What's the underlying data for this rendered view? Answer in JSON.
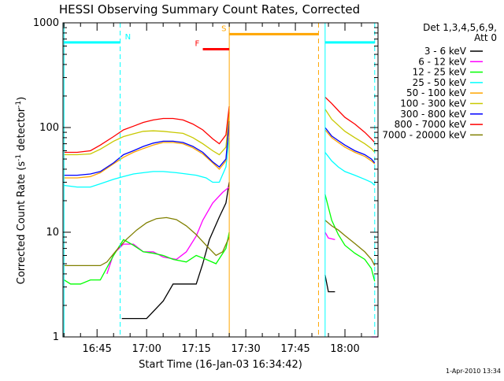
{
  "chart_data": {
    "type": "line",
    "title": "HESSI Observing Summary Count Rates, Corrected",
    "xlabel": "Start Time (16-Jan-03 16:34:42)",
    "ylabel_parts": [
      "Corrected Count Rate (s",
      "-1",
      " detector",
      "-1",
      ")"
    ],
    "y_scale": "log",
    "ylim": [
      1,
      1000
    ],
    "y_ticks": [
      1,
      10,
      100,
      1000
    ],
    "y_tick_labels": [
      "1",
      "10",
      "100",
      "1000"
    ],
    "xlim": [
      "16:34:42",
      "18:10:00"
    ],
    "x_ticks": [
      "16:45",
      "17:00",
      "17:15",
      "17:30",
      "17:45",
      "18:00"
    ],
    "grid": false,
    "legend_position": "right",
    "legend_header": [
      "Det 1,3,4,5,6,9,",
      "Att 0"
    ],
    "series": [
      {
        "name": "3 - 6 keV",
        "color": "#000000",
        "segments": [
          [
            [
              "16:34:42",
              null
            ],
            [
              "16:52",
              null
            ],
            [
              "16:52:30",
              1.5
            ],
            [
              "17:00",
              1.5
            ],
            [
              "17:05",
              2.2
            ],
            [
              "17:08",
              3.2
            ],
            [
              "17:12",
              3.2
            ],
            [
              "17:15",
              3.2
            ],
            [
              "17:17",
              5.0
            ],
            [
              "17:19",
              8.5
            ],
            [
              "17:22",
              14
            ],
            [
              "17:24",
              19
            ],
            [
              "17:25",
              30
            ]
          ],
          [
            [
              "17:54",
              3.9
            ],
            [
              "17:55",
              2.7
            ],
            [
              "17:57",
              2.7
            ]
          ]
        ]
      },
      {
        "name": "6 - 12 keV",
        "color": "#ff00ff",
        "segments": [
          [
            [
              "16:34:42",
              null
            ],
            [
              "16:46",
              null
            ],
            [
              "16:48",
              4.0
            ],
            [
              "16:50",
              6.2
            ],
            [
              "16:53",
              7.7
            ],
            [
              "16:56",
              7.7
            ],
            [
              "16:59",
              6.5
            ],
            [
              "17:02",
              6.5
            ],
            [
              "17:05",
              5.8
            ],
            [
              "17:09",
              5.5
            ],
            [
              "17:12",
              6.5
            ],
            [
              "17:15",
              9.2
            ],
            [
              "17:17",
              13
            ],
            [
              "17:20",
              19
            ],
            [
              "17:23",
              24
            ],
            [
              "17:25",
              27
            ]
          ],
          [
            [
              "17:54",
              10
            ],
            [
              "17:55",
              8.8
            ],
            [
              "17:57",
              8.5
            ]
          ],
          [
            [
              "18:08",
              1.0
            ],
            [
              "18:10",
              1.0
            ]
          ]
        ]
      },
      {
        "name": "12 - 25 keV",
        "color": "#00ff00",
        "segments": [
          [
            [
              "16:35",
              3.5
            ],
            [
              "16:37",
              3.2
            ],
            [
              "16:40",
              3.2
            ],
            [
              "16:43",
              3.5
            ],
            [
              "16:46",
              3.5
            ],
            [
              "16:50",
              6.0
            ],
            [
              "16:53",
              8.5
            ],
            [
              "16:56",
              7.5
            ],
            [
              "16:59",
              6.5
            ],
            [
              "17:02",
              6.3
            ],
            [
              "17:05",
              6.0
            ],
            [
              "17:08",
              5.5
            ],
            [
              "17:12",
              5.2
            ],
            [
              "17:15",
              6.0
            ],
            [
              "17:18",
              5.5
            ],
            [
              "17:21",
              5.0
            ],
            [
              "17:24",
              7.0
            ],
            [
              "17:25",
              10
            ]
          ],
          [
            [
              "17:54",
              23
            ],
            [
              "17:56",
              13
            ],
            [
              "17:58",
              9.5
            ],
            [
              "18:00",
              7.5
            ],
            [
              "18:03",
              6.3
            ],
            [
              "18:06",
              5.5
            ],
            [
              "18:08",
              4.5
            ],
            [
              "18:09",
              3.4
            ]
          ]
        ]
      },
      {
        "name": "25 - 50 keV",
        "color": "#00ffff",
        "segments": [
          [
            [
              "16:35",
              28
            ],
            [
              "16:39",
              27
            ],
            [
              "16:43",
              27
            ],
            [
              "16:46",
              29
            ],
            [
              "16:50",
              32
            ],
            [
              "16:53",
              34
            ],
            [
              "16:56",
              36
            ],
            [
              "16:59",
              37
            ],
            [
              "17:02",
              38
            ],
            [
              "17:05",
              38
            ],
            [
              "17:09",
              37
            ],
            [
              "17:12",
              36
            ],
            [
              "17:15",
              35
            ],
            [
              "17:18",
              33
            ],
            [
              "17:20",
              30
            ],
            [
              "17:22",
              30
            ],
            [
              "17:24",
              42
            ],
            [
              "17:25",
              80
            ]
          ],
          [
            [
              "17:54",
              58
            ],
            [
              "17:56",
              48
            ],
            [
              "17:58",
              42
            ],
            [
              "18:00",
              38
            ],
            [
              "18:03",
              35
            ],
            [
              "18:06",
              32
            ],
            [
              "18:08",
              30
            ],
            [
              "18:09",
              28
            ]
          ]
        ]
      },
      {
        "name": "50 - 100 keV",
        "color": "#ffa500",
        "segments": [
          [
            [
              "16:35",
              33
            ],
            [
              "16:39",
              33
            ],
            [
              "16:43",
              34
            ],
            [
              "16:46",
              37
            ],
            [
              "16:50",
              45
            ],
            [
              "16:53",
              52
            ],
            [
              "16:56",
              58
            ],
            [
              "16:59",
              63
            ],
            [
              "17:02",
              68
            ],
            [
              "17:05",
              72
            ],
            [
              "17:08",
              72
            ],
            [
              "17:11",
              70
            ],
            [
              "17:14",
              64
            ],
            [
              "17:17",
              56
            ],
            [
              "17:20",
              46
            ],
            [
              "17:22",
              40
            ],
            [
              "17:24",
              48
            ],
            [
              "17:25",
              110
            ]
          ],
          [
            [
              "17:54",
              95
            ],
            [
              "17:56",
              80
            ],
            [
              "17:58",
              72
            ],
            [
              "18:00",
              65
            ],
            [
              "18:03",
              58
            ],
            [
              "18:06",
              53
            ],
            [
              "18:08",
              48
            ],
            [
              "18:09",
              45
            ]
          ]
        ]
      },
      {
        "name": "100 - 300 keV",
        "color": "#c8c800",
        "segments": [
          [
            [
              "16:35",
              55
            ],
            [
              "16:39",
              55
            ],
            [
              "16:43",
              56
            ],
            [
              "16:46",
              62
            ],
            [
              "16:50",
              74
            ],
            [
              "16:53",
              82
            ],
            [
              "16:56",
              87
            ],
            [
              "16:59",
              92
            ],
            [
              "17:02",
              93
            ],
            [
              "17:05",
              92
            ],
            [
              "17:08",
              90
            ],
            [
              "17:11",
              88
            ],
            [
              "17:14",
              80
            ],
            [
              "17:17",
              70
            ],
            [
              "17:20",
              60
            ],
            [
              "17:22",
              55
            ],
            [
              "17:24",
              65
            ],
            [
              "17:25",
              140
            ]
          ],
          [
            [
              "17:54",
              150
            ],
            [
              "17:56",
              120
            ],
            [
              "17:58",
              105
            ],
            [
              "18:00",
              92
            ],
            [
              "18:03",
              80
            ],
            [
              "18:06",
              70
            ],
            [
              "18:08",
              63
            ],
            [
              "18:09",
              58
            ]
          ]
        ]
      },
      {
        "name": "300 - 800 keV",
        "color": "#0000ff",
        "segments": [
          [
            [
              "16:35",
              35
            ],
            [
              "16:39",
              35
            ],
            [
              "16:43",
              36
            ],
            [
              "16:46",
              38
            ],
            [
              "16:50",
              46
            ],
            [
              "16:53",
              55
            ],
            [
              "16:56",
              60
            ],
            [
              "16:59",
              66
            ],
            [
              "17:02",
              71
            ],
            [
              "17:05",
              74
            ],
            [
              "17:08",
              74
            ],
            [
              "17:11",
              72
            ],
            [
              "17:14",
              66
            ],
            [
              "17:17",
              58
            ],
            [
              "17:20",
              47
            ],
            [
              "17:22",
              42
            ],
            [
              "17:24",
              50
            ],
            [
              "17:25",
              115
            ]
          ],
          [
            [
              "17:54",
              100
            ],
            [
              "17:56",
              83
            ],
            [
              "17:58",
              75
            ],
            [
              "18:00",
              68
            ],
            [
              "18:03",
              60
            ],
            [
              "18:06",
              55
            ],
            [
              "18:08",
              50
            ],
            [
              "18:09",
              46
            ]
          ]
        ]
      },
      {
        "name": "800 - 7000 keV",
        "color": "#ff0000",
        "segments": [
          [
            [
              "16:35",
              58
            ],
            [
              "16:39",
              58
            ],
            [
              "16:43",
              60
            ],
            [
              "16:46",
              68
            ],
            [
              "16:50",
              82
            ],
            [
              "16:53",
              95
            ],
            [
              "16:56",
              103
            ],
            [
              "16:59",
              112
            ],
            [
              "17:02",
              118
            ],
            [
              "17:05",
              122
            ],
            [
              "17:08",
              122
            ],
            [
              "17:11",
              118
            ],
            [
              "17:14",
              108
            ],
            [
              "17:17",
              95
            ],
            [
              "17:20",
              78
            ],
            [
              "17:22",
              70
            ],
            [
              "17:24",
              85
            ],
            [
              "17:25",
              160
            ]
          ],
          [
            [
              "17:54",
              195
            ],
            [
              "17:56",
              170
            ],
            [
              "17:58",
              145
            ],
            [
              "18:00",
              125
            ],
            [
              "18:03",
              108
            ],
            [
              "18:06",
              90
            ],
            [
              "18:08",
              78
            ],
            [
              "18:09",
              72
            ]
          ]
        ]
      },
      {
        "name": "7000 - 20000 keV",
        "color": "#808000",
        "segments": [
          [
            [
              "16:35",
              4.8
            ],
            [
              "16:39",
              4.8
            ],
            [
              "16:43",
              4.8
            ],
            [
              "16:46",
              4.8
            ],
            [
              "16:48",
              5.2
            ],
            [
              "16:51",
              6.8
            ],
            [
              "16:54",
              8.6
            ],
            [
              "16:57",
              10.5
            ],
            [
              "17:00",
              12.3
            ],
            [
              "17:03",
              13.5
            ],
            [
              "17:06",
              13.8
            ],
            [
              "17:09",
              13.2
            ],
            [
              "17:12",
              11.5
            ],
            [
              "17:15",
              9.5
            ],
            [
              "17:18",
              7.5
            ],
            [
              "17:21",
              6.0
            ],
            [
              "17:23",
              6.5
            ],
            [
              "17:25",
              9.0
            ]
          ],
          [
            [
              "17:54",
              13
            ],
            [
              "17:56",
              11.5
            ],
            [
              "17:58",
              10.5
            ],
            [
              "18:00",
              9.3
            ],
            [
              "18:03",
              7.8
            ],
            [
              "18:06",
              6.5
            ],
            [
              "18:08",
              5.5
            ],
            [
              "18:09",
              4.8
            ]
          ]
        ]
      }
    ],
    "vertical_markers": [
      {
        "time": "16:35",
        "color": "#00ffff",
        "style": "solid"
      },
      {
        "time": "16:52",
        "color": "#00ffff",
        "style": "dashed"
      },
      {
        "time": "17:25",
        "color": "#ffa500",
        "style": "solid"
      },
      {
        "time": "17:52",
        "color": "#ffa500",
        "style": "dashed"
      },
      {
        "time": "17:54",
        "color": "#00ffff",
        "style": "solid"
      },
      {
        "time": "18:09",
        "color": "#00ffff",
        "style": "dashed"
      }
    ],
    "flag_bars": [
      {
        "label": "N",
        "color": "#00ffff",
        "value": 650,
        "spans": [
          [
            "16:35",
            "16:52"
          ],
          [
            "17:54",
            "18:09"
          ]
        ]
      },
      {
        "label": "F",
        "color": "#ff0000",
        "value": 560,
        "spans": [
          [
            "17:17",
            "17:25"
          ]
        ]
      },
      {
        "label": "S",
        "color": "#ffa500",
        "value": 780,
        "spans": [
          [
            "17:25",
            "17:52"
          ]
        ]
      }
    ]
  },
  "footer_timestamp": "1-Apr-2010 13:34"
}
